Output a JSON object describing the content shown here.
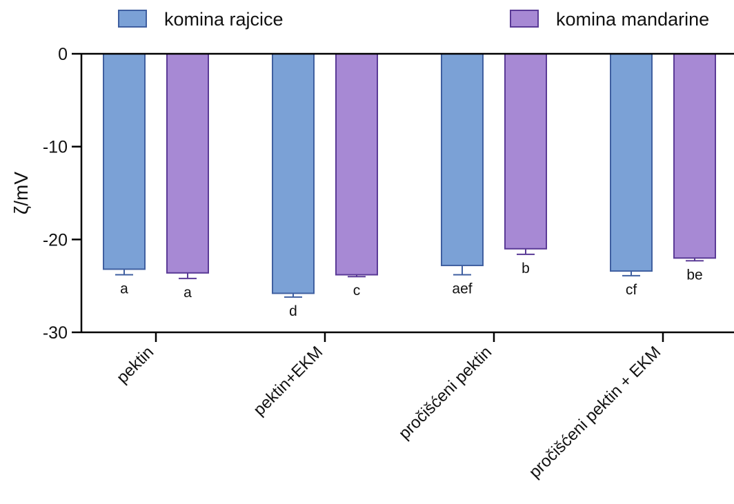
{
  "chart_data": {
    "type": "bar",
    "ylabel": "ζ/mV",
    "ylim": [
      -30,
      0
    ],
    "yticks": [
      0,
      -10,
      -20,
      -30
    ],
    "categories": [
      "pektin",
      "pektin+EKM",
      "pročišćeni pektin",
      "pročišćeni pektin + EKM"
    ],
    "legend_position": "top",
    "series": [
      {
        "name": "komina rajcice",
        "color": "#7ba1d6",
        "stroke": "#3f5fa0",
        "values": [
          -23.2,
          -25.8,
          -22.8,
          -23.4
        ],
        "errors": [
          0.6,
          0.4,
          1.0,
          0.5
        ],
        "labels": [
          "a",
          "d",
          "aef",
          "cf"
        ]
      },
      {
        "name": "komina mandarine",
        "color": "#a789d4",
        "stroke": "#5a3a96",
        "values": [
          -23.6,
          -23.8,
          -21.0,
          -22.0
        ],
        "errors": [
          0.6,
          0.2,
          0.6,
          0.3
        ],
        "labels": [
          "a",
          "c",
          "b",
          "be"
        ]
      }
    ]
  }
}
